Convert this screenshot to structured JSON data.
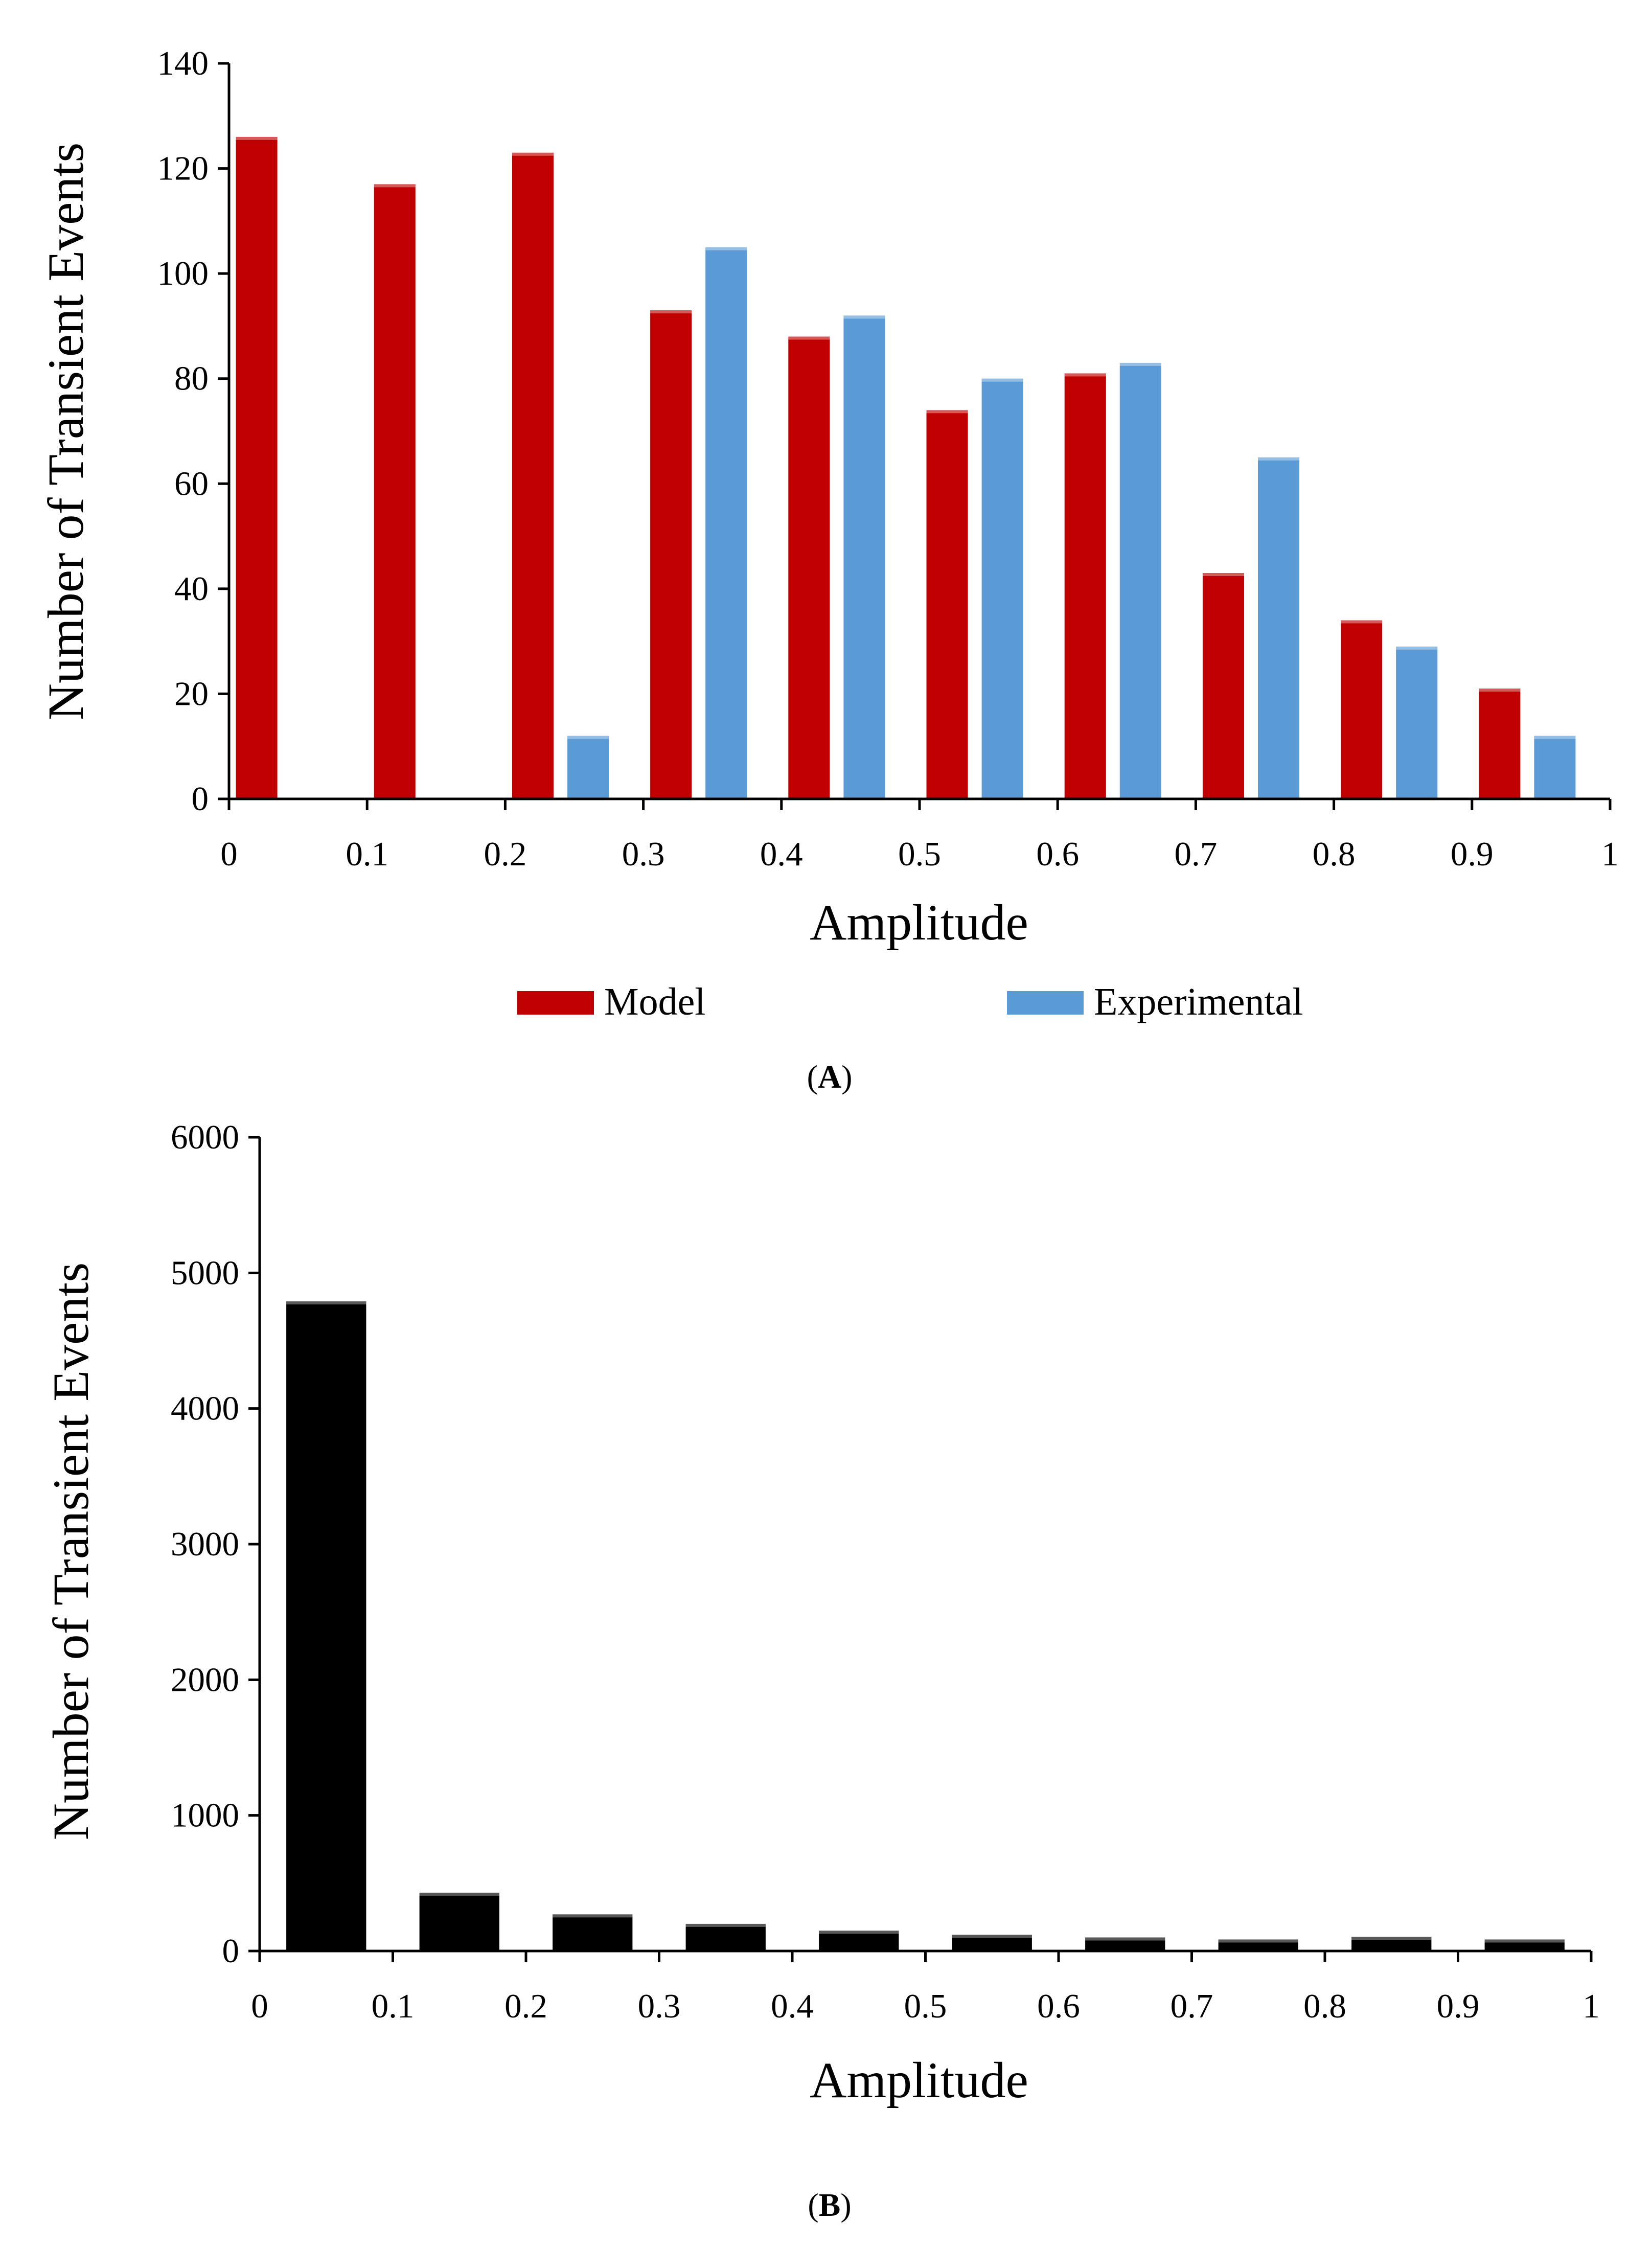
{
  "chart_data": [
    {
      "type": "bar",
      "panel_label": {
        "open": "(",
        "letter": "A",
        "close": ")"
      },
      "xlabel": "Amplitude",
      "ylabel": "Number of Transient Events",
      "xlim": [
        0,
        1
      ],
      "ylim": [
        0,
        140
      ],
      "x_ticks": [
        "0",
        "0.1",
        "0.2",
        "0.3",
        "0.4",
        "0.5",
        "0.6",
        "0.7",
        "0.8",
        "0.9",
        "1"
      ],
      "y_ticks": [
        "0",
        "20",
        "40",
        "60",
        "80",
        "100",
        "120",
        "140"
      ],
      "bins": [
        "0-0.1",
        "0.1-0.2",
        "0.2-0.3",
        "0.3-0.4",
        "0.4-0.5",
        "0.5-0.6",
        "0.6-0.7",
        "0.7-0.8",
        "0.8-0.9",
        "0.9-1"
      ],
      "legend_position": "bottom",
      "series": [
        {
          "name": "Model",
          "color": "#c00000",
          "values": [
            126,
            117,
            123,
            93,
            88,
            74,
            81,
            43,
            34,
            21
          ]
        },
        {
          "name": "Experimental",
          "color": "#5b9bd5",
          "values": [
            0,
            0,
            12,
            105,
            92,
            80,
            83,
            65,
            29,
            12
          ]
        }
      ]
    },
    {
      "type": "bar",
      "panel_label": {
        "open": "(",
        "letter": "B",
        "close": ")"
      },
      "xlabel": "Amplitude",
      "ylabel": "Number of Transient Events",
      "xlim": [
        0,
        1
      ],
      "ylim": [
        0,
        6000
      ],
      "x_ticks": [
        "0",
        "0.1",
        "0.2",
        "0.3",
        "0.4",
        "0.5",
        "0.6",
        "0.7",
        "0.8",
        "0.9",
        "1"
      ],
      "y_ticks": [
        "0",
        "1000",
        "2000",
        "3000",
        "4000",
        "5000",
        "6000"
      ],
      "bins": [
        "0-0.1",
        "0.1-0.2",
        "0.2-0.3",
        "0.3-0.4",
        "0.4-0.5",
        "0.5-0.6",
        "0.6-0.7",
        "0.7-0.8",
        "0.8-0.9",
        "0.9-1"
      ],
      "series": [
        {
          "name": "",
          "color": "#000000",
          "values": [
            4790,
            430,
            270,
            200,
            150,
            120,
            100,
            85,
            105,
            85
          ]
        }
      ]
    }
  ]
}
